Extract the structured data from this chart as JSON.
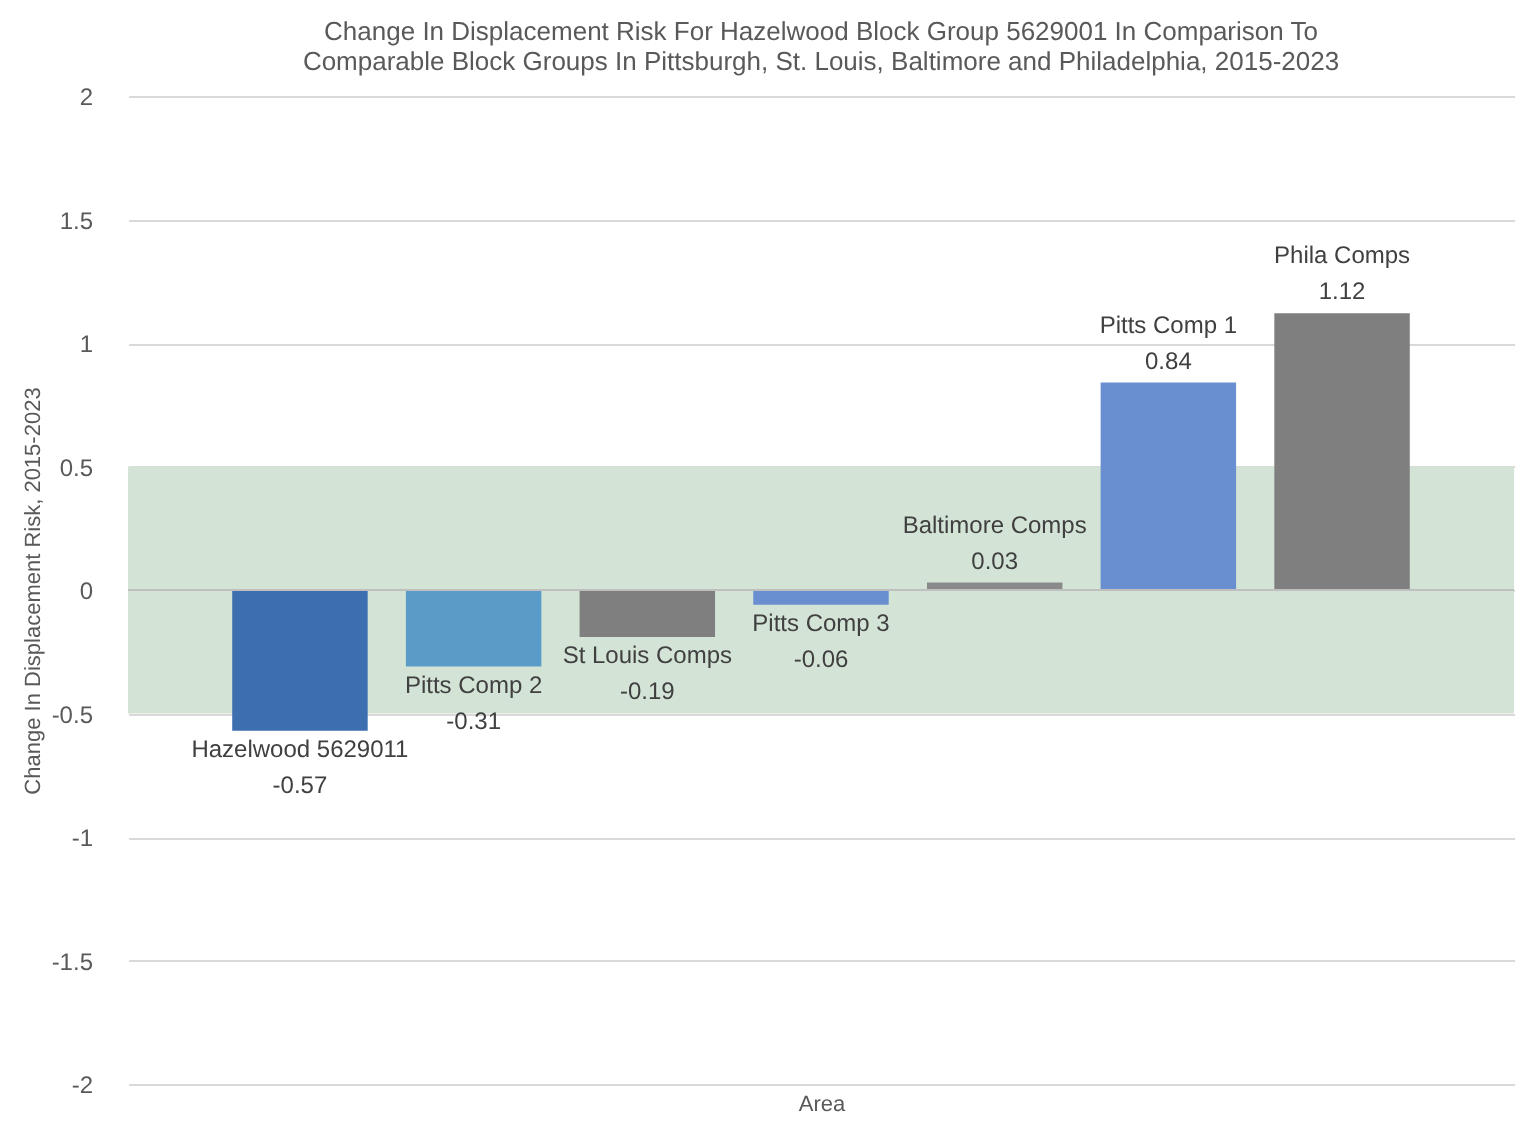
{
  "chart_data": {
    "type": "bar",
    "title": [
      "Change In Displacement Risk For Hazelwood Block Group 5629001 In Comparison To",
      "Comparable Block Groups In Pittsburgh, St. Louis, Baltimore and Philadelphia, 2015-2023"
    ],
    "xlabel": "Area",
    "ylabel": "Change In Displacement Risk, 2015-2023",
    "categories": [
      "Hazelwood 5629011",
      "Pitts Comp 2",
      "St Louis Comps",
      "Pitts Comp 3",
      "Baltimore Comps",
      "Pitts Comp 1",
      "Phila Comps"
    ],
    "values": [
      -0.57,
      -0.31,
      -0.19,
      -0.06,
      0.03,
      0.84,
      1.12
    ],
    "colors": [
      "#3d6fb0",
      "#5b9bc8",
      "#7f7f7f",
      "#6a8fd0",
      "#8a8a8a",
      "#6a8fd0",
      "#7f7f7f"
    ],
    "data_labels": true,
    "ylim": [
      -2,
      2
    ],
    "yticks": [
      -2,
      -1.5,
      -1,
      -0.5,
      0,
      0.5,
      1,
      1.5,
      2
    ],
    "bands": [
      {
        "axis": "y",
        "from": -0.5,
        "to": 0.5,
        "color": "#d3e4d6"
      }
    ],
    "grid": "y"
  }
}
